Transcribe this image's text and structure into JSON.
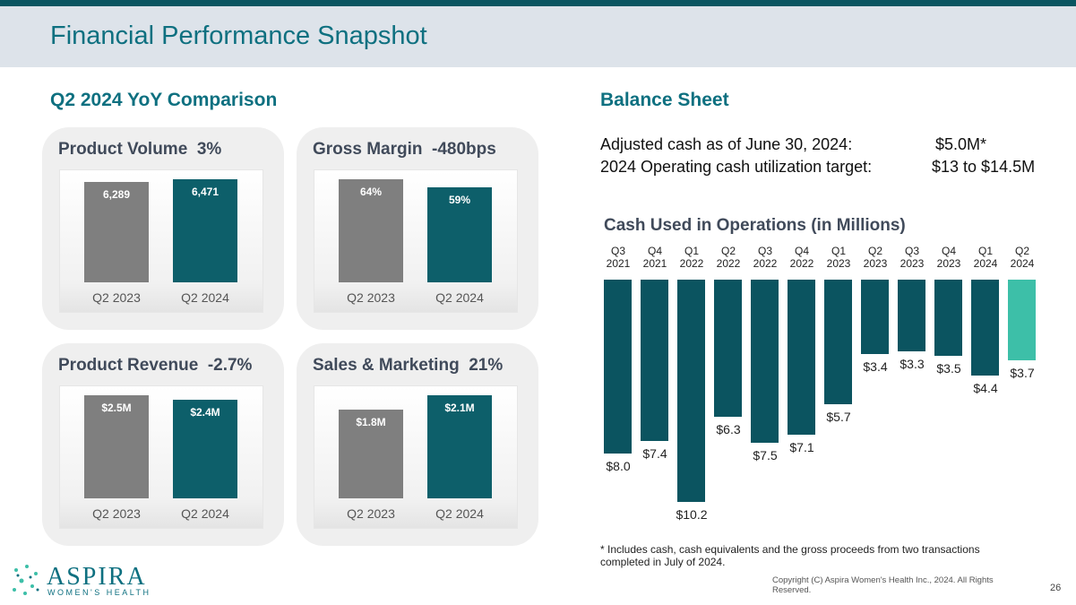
{
  "title": "Financial Performance Snapshot",
  "left_heading": "Q2 2024 YoY Comparison",
  "right_heading": "Balance Sheet",
  "balance_rows": [
    [
      "Adjusted cash as of June 30, 2024:",
      "$5.0M*"
    ],
    [
      "2024 Operating cash utilization target:",
      "$13 to $14.5M"
    ]
  ],
  "footnote": "* Includes cash, cash equivalents and the gross proceeds from two transactions completed in July of 2024.",
  "logo": {
    "name": "ASPIRA",
    "sub": "WOMEN'S HEALTH"
  },
  "copyright": "Copyright (C) Aspira Women's Health Inc., 2024. All Rights Reserved.",
  "page_number": "26",
  "chart_data": [
    {
      "type": "bar",
      "title": "Product Volume  3%",
      "categories": [
        "Q2 2023",
        "Q2 2024"
      ],
      "values": [
        6289,
        6471
      ],
      "value_labels": [
        "6,289",
        "6,471"
      ],
      "colors": [
        "#7f7f7f",
        "#0d5f6a"
      ]
    },
    {
      "type": "bar",
      "title": "Gross Margin  -480bps",
      "categories": [
        "Q2 2023",
        "Q2 2024"
      ],
      "values": [
        64,
        59
      ],
      "value_labels": [
        "64%",
        "59%"
      ],
      "colors": [
        "#7f7f7f",
        "#0d5f6a"
      ]
    },
    {
      "type": "bar",
      "title": "Product Revenue  -2.7%",
      "categories": [
        "Q2 2023",
        "Q2 2024"
      ],
      "values": [
        2.5,
        2.4
      ],
      "value_labels": [
        "$2.5M",
        "$2.4M"
      ],
      "colors": [
        "#7f7f7f",
        "#0d5f6a"
      ]
    },
    {
      "type": "bar",
      "title": "Sales & Marketing  21%",
      "categories": [
        "Q2 2023",
        "Q2 2024"
      ],
      "values": [
        1.8,
        2.1
      ],
      "value_labels": [
        "$1.8M",
        "$2.1M"
      ],
      "colors": [
        "#7f7f7f",
        "#0d5f6a"
      ]
    },
    {
      "type": "bar",
      "title": "Cash Used in Operations (in Millions)",
      "categories": [
        "Q3 2021",
        "Q4 2021",
        "Q1 2022",
        "Q2 2022",
        "Q3 2022",
        "Q4 2022",
        "Q1 2023",
        "Q2 2023",
        "Q3 2023",
        "Q4 2023",
        "Q1 2024",
        "Q2 2024"
      ],
      "values": [
        8.0,
        7.4,
        10.2,
        6.3,
        7.5,
        7.1,
        5.7,
        3.4,
        3.3,
        3.5,
        4.4,
        3.7
      ],
      "value_labels": [
        "$8.0",
        "$7.4",
        "$10.2",
        "$6.3",
        "$7.5",
        "$7.1",
        "$5.7",
        "$3.4",
        "$3.3",
        "$3.5",
        "$4.4",
        "$3.7"
      ],
      "colors": [
        "#0b5460",
        "#0b5460",
        "#0b5460",
        "#0b5460",
        "#0b5460",
        "#0b5460",
        "#0b5460",
        "#0b5460",
        "#0b5460",
        "#0b5460",
        "#0b5460",
        "#3dbfa8"
      ]
    }
  ]
}
